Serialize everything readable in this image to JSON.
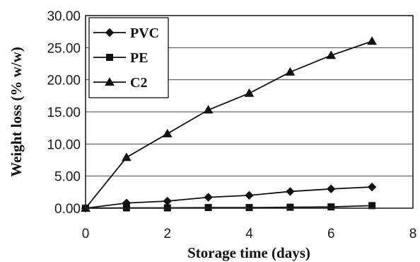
{
  "chart_data": {
    "type": "line",
    "title": "",
    "xlabel": "Storage time (days)",
    "ylabel": "Weight loss (% w/w)",
    "xlim": [
      0,
      8
    ],
    "ylim": [
      0,
      30
    ],
    "x_ticks": [
      "0",
      "2",
      "4",
      "6",
      "8"
    ],
    "y_ticks": [
      "0.00",
      "5.00",
      "10.00",
      "15.00",
      "20.00",
      "25.00",
      "30.00"
    ],
    "grid": "horizontal",
    "legend_position": "top-left",
    "series": [
      {
        "name": "PVC",
        "marker": "diamond",
        "x": [
          0,
          1,
          2,
          3,
          4,
          5,
          6,
          7
        ],
        "y": [
          0,
          0.8,
          1.1,
          1.7,
          2.0,
          2.6,
          3.0,
          3.3
        ]
      },
      {
        "name": "PE",
        "marker": "square",
        "x": [
          0,
          1,
          2,
          3,
          4,
          5,
          6,
          7
        ],
        "y": [
          0,
          0.05,
          0.05,
          0.1,
          0.1,
          0.15,
          0.2,
          0.4
        ]
      },
      {
        "name": "C2",
        "marker": "triangle",
        "x": [
          0,
          1,
          2,
          3,
          4,
          5,
          6,
          7
        ],
        "y": [
          0,
          7.9,
          11.6,
          15.3,
          17.9,
          21.2,
          23.8,
          26.0
        ]
      }
    ]
  }
}
